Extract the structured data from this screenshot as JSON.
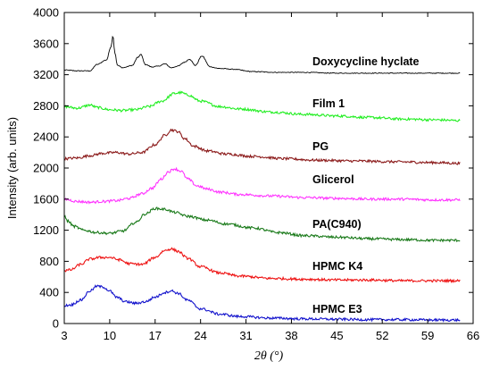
{
  "chart_data": {
    "type": "line",
    "xlabel": "2θ (°)",
    "ylabel": "Intensity (arb. units)",
    "xlim": [
      3,
      66
    ],
    "ylim": [
      0,
      4000
    ],
    "xticks": [
      3,
      10,
      17,
      24,
      31,
      38,
      45,
      52,
      59,
      66
    ],
    "yticks": [
      0,
      400,
      800,
      1200,
      1600,
      2000,
      2400,
      2800,
      3200,
      3600,
      4000
    ],
    "grid": false,
    "legend": "inline labels",
    "series": [
      {
        "name": "Doxycycline hyclate",
        "color": "#000000",
        "x": [
          3,
          5,
          7,
          8,
          9.5,
          10.2,
          10.5,
          10.8,
          11.2,
          12,
          13.5,
          14.3,
          14.8,
          15.5,
          16.5,
          17.5,
          18.5,
          19.5,
          20.5,
          21.5,
          22.3,
          23.2,
          24.2,
          25.5,
          27,
          29,
          32,
          36,
          40,
          45,
          50,
          55,
          60,
          64
        ],
        "y": [
          3260,
          3250,
          3250,
          3330,
          3390,
          3560,
          3700,
          3480,
          3320,
          3290,
          3320,
          3420,
          3460,
          3330,
          3300,
          3310,
          3340,
          3290,
          3310,
          3360,
          3400,
          3320,
          3440,
          3300,
          3280,
          3270,
          3240,
          3230,
          3230,
          3220,
          3220,
          3220,
          3220,
          3220
        ]
      },
      {
        "name": "Film 1",
        "color": "#22ee22",
        "x": [
          3,
          5,
          7,
          8,
          10,
          12,
          14,
          16,
          18,
          20,
          21,
          22,
          24,
          27,
          30,
          35,
          40,
          45,
          50,
          55,
          60,
          64
        ],
        "y": [
          2790,
          2770,
          2810,
          2780,
          2750,
          2740,
          2750,
          2790,
          2860,
          2960,
          2970,
          2940,
          2860,
          2790,
          2760,
          2720,
          2690,
          2670,
          2650,
          2630,
          2620,
          2610
        ]
      },
      {
        "name": "PG",
        "color": "#8b1a1a",
        "x": [
          3,
          5,
          7,
          9,
          11,
          13,
          15,
          17,
          18.5,
          19.5,
          20.5,
          21.5,
          23,
          25,
          28,
          32,
          37,
          42,
          48,
          54,
          60,
          64
        ],
        "y": [
          2120,
          2130,
          2160,
          2190,
          2200,
          2180,
          2200,
          2300,
          2420,
          2490,
          2470,
          2380,
          2280,
          2220,
          2180,
          2150,
          2120,
          2100,
          2090,
          2080,
          2070,
          2060
        ]
      },
      {
        "name": "Glicerol",
        "color": "#ff33ff",
        "x": [
          3,
          5,
          7,
          9,
          11,
          13,
          15,
          16.5,
          18,
          19,
          20,
          21,
          22,
          23.5,
          25,
          27,
          30,
          35,
          40,
          45,
          50,
          55,
          60,
          64
        ],
        "y": [
          1600,
          1570,
          1560,
          1570,
          1580,
          1610,
          1670,
          1740,
          1860,
          1950,
          1990,
          1960,
          1860,
          1770,
          1730,
          1690,
          1660,
          1640,
          1620,
          1610,
          1600,
          1600,
          1590,
          1590
        ]
      },
      {
        "name": "PA(C940)",
        "color": "#1a7a1a",
        "x": [
          3,
          3.5,
          4.5,
          6,
          8,
          10,
          12,
          14,
          15.5,
          17,
          18.5,
          20,
          22,
          25,
          28,
          32,
          36,
          40,
          45,
          50,
          55,
          60,
          64
        ],
        "y": [
          1380,
          1320,
          1250,
          1200,
          1170,
          1160,
          1190,
          1300,
          1410,
          1480,
          1470,
          1430,
          1380,
          1330,
          1280,
          1230,
          1170,
          1130,
          1110,
          1090,
          1080,
          1070,
          1070
        ]
      },
      {
        "name": "HPMC K4",
        "color": "#ee1111",
        "x": [
          3,
          4,
          5.5,
          7,
          8.5,
          10,
          11.5,
          13,
          15,
          17,
          18.5,
          19.5,
          20.5,
          22,
          24,
          27,
          30,
          35,
          40,
          45,
          50,
          55,
          60,
          64
        ],
        "y": [
          680,
          690,
          760,
          830,
          850,
          850,
          820,
          770,
          760,
          850,
          940,
          960,
          930,
          840,
          730,
          650,
          610,
          580,
          570,
          560,
          560,
          550,
          550,
          550
        ]
      },
      {
        "name": "HPMC E3",
        "color": "#1111cc",
        "x": [
          3,
          4,
          5.5,
          7,
          8,
          9,
          10,
          11,
          12.5,
          14,
          15.5,
          17,
          18.5,
          19.5,
          20.5,
          22,
          24,
          27,
          30,
          35,
          40,
          45,
          50,
          55,
          60,
          64
        ],
        "y": [
          230,
          240,
          300,
          420,
          480,
          470,
          420,
          340,
          280,
          260,
          280,
          340,
          400,
          420,
          390,
          300,
          190,
          120,
          90,
          70,
          60,
          55,
          50,
          50,
          45,
          45
        ]
      }
    ]
  }
}
